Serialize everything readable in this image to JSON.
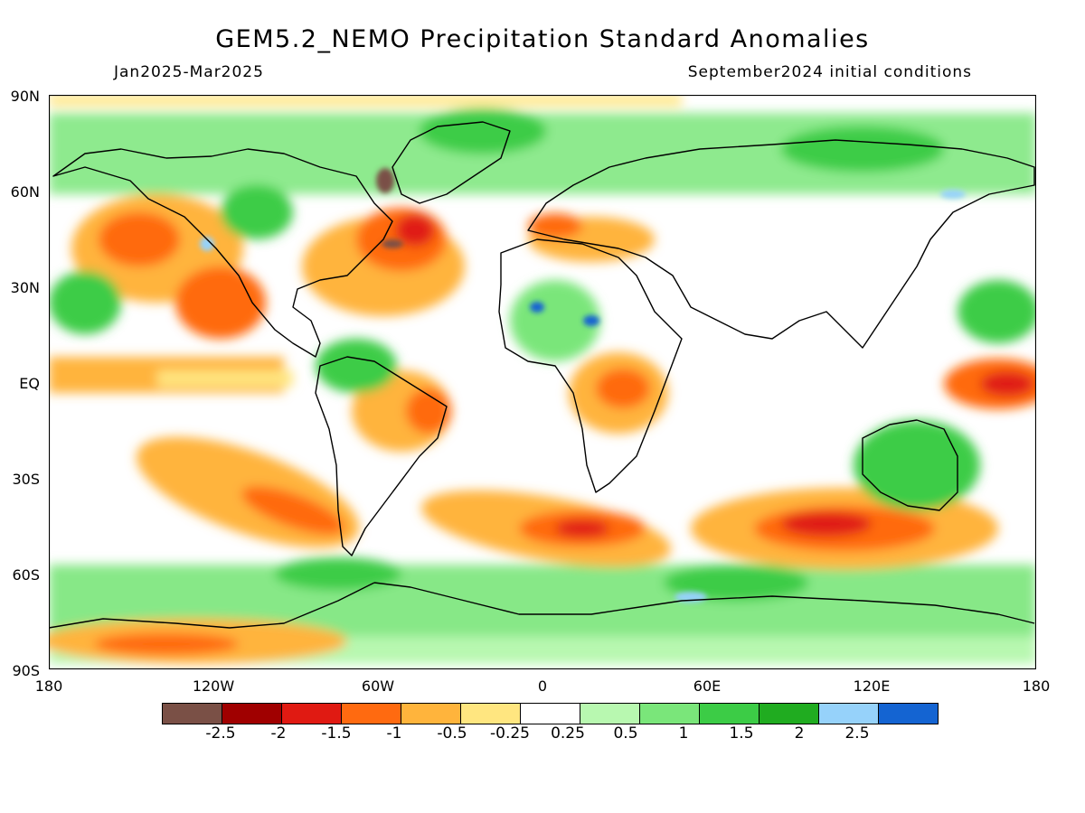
{
  "header": {
    "title": "GEM5.2_NEMO Precipitation Standard Anomalies",
    "period": "Jan2025-Mar2025",
    "init": "September2024 initial conditions"
  },
  "map": {
    "lat_labels": [
      "90N",
      "60N",
      "30N",
      "EQ",
      "30S",
      "60S",
      "90S"
    ],
    "lon_labels": [
      "180",
      "120W",
      "60W",
      "0",
      "60E",
      "120E",
      "180"
    ],
    "field": "Precipitation standard anomaly"
  },
  "colorbar": {
    "colors": [
      "#7a5046",
      "#a00000",
      "#e01a12",
      "#ff6a10",
      "#ffb43c",
      "#ffe680",
      "#ffffff",
      "#b8f8b0",
      "#7ae67a",
      "#3ccc46",
      "#20ac20",
      "#96d2fa",
      "#1464d2"
    ],
    "labels": [
      "-2.5",
      "-2",
      "-1.5",
      "-1",
      "-0.5",
      "-0.25",
      "0.25",
      "0.5",
      "1",
      "1.5",
      "2",
      "2.5"
    ]
  }
}
